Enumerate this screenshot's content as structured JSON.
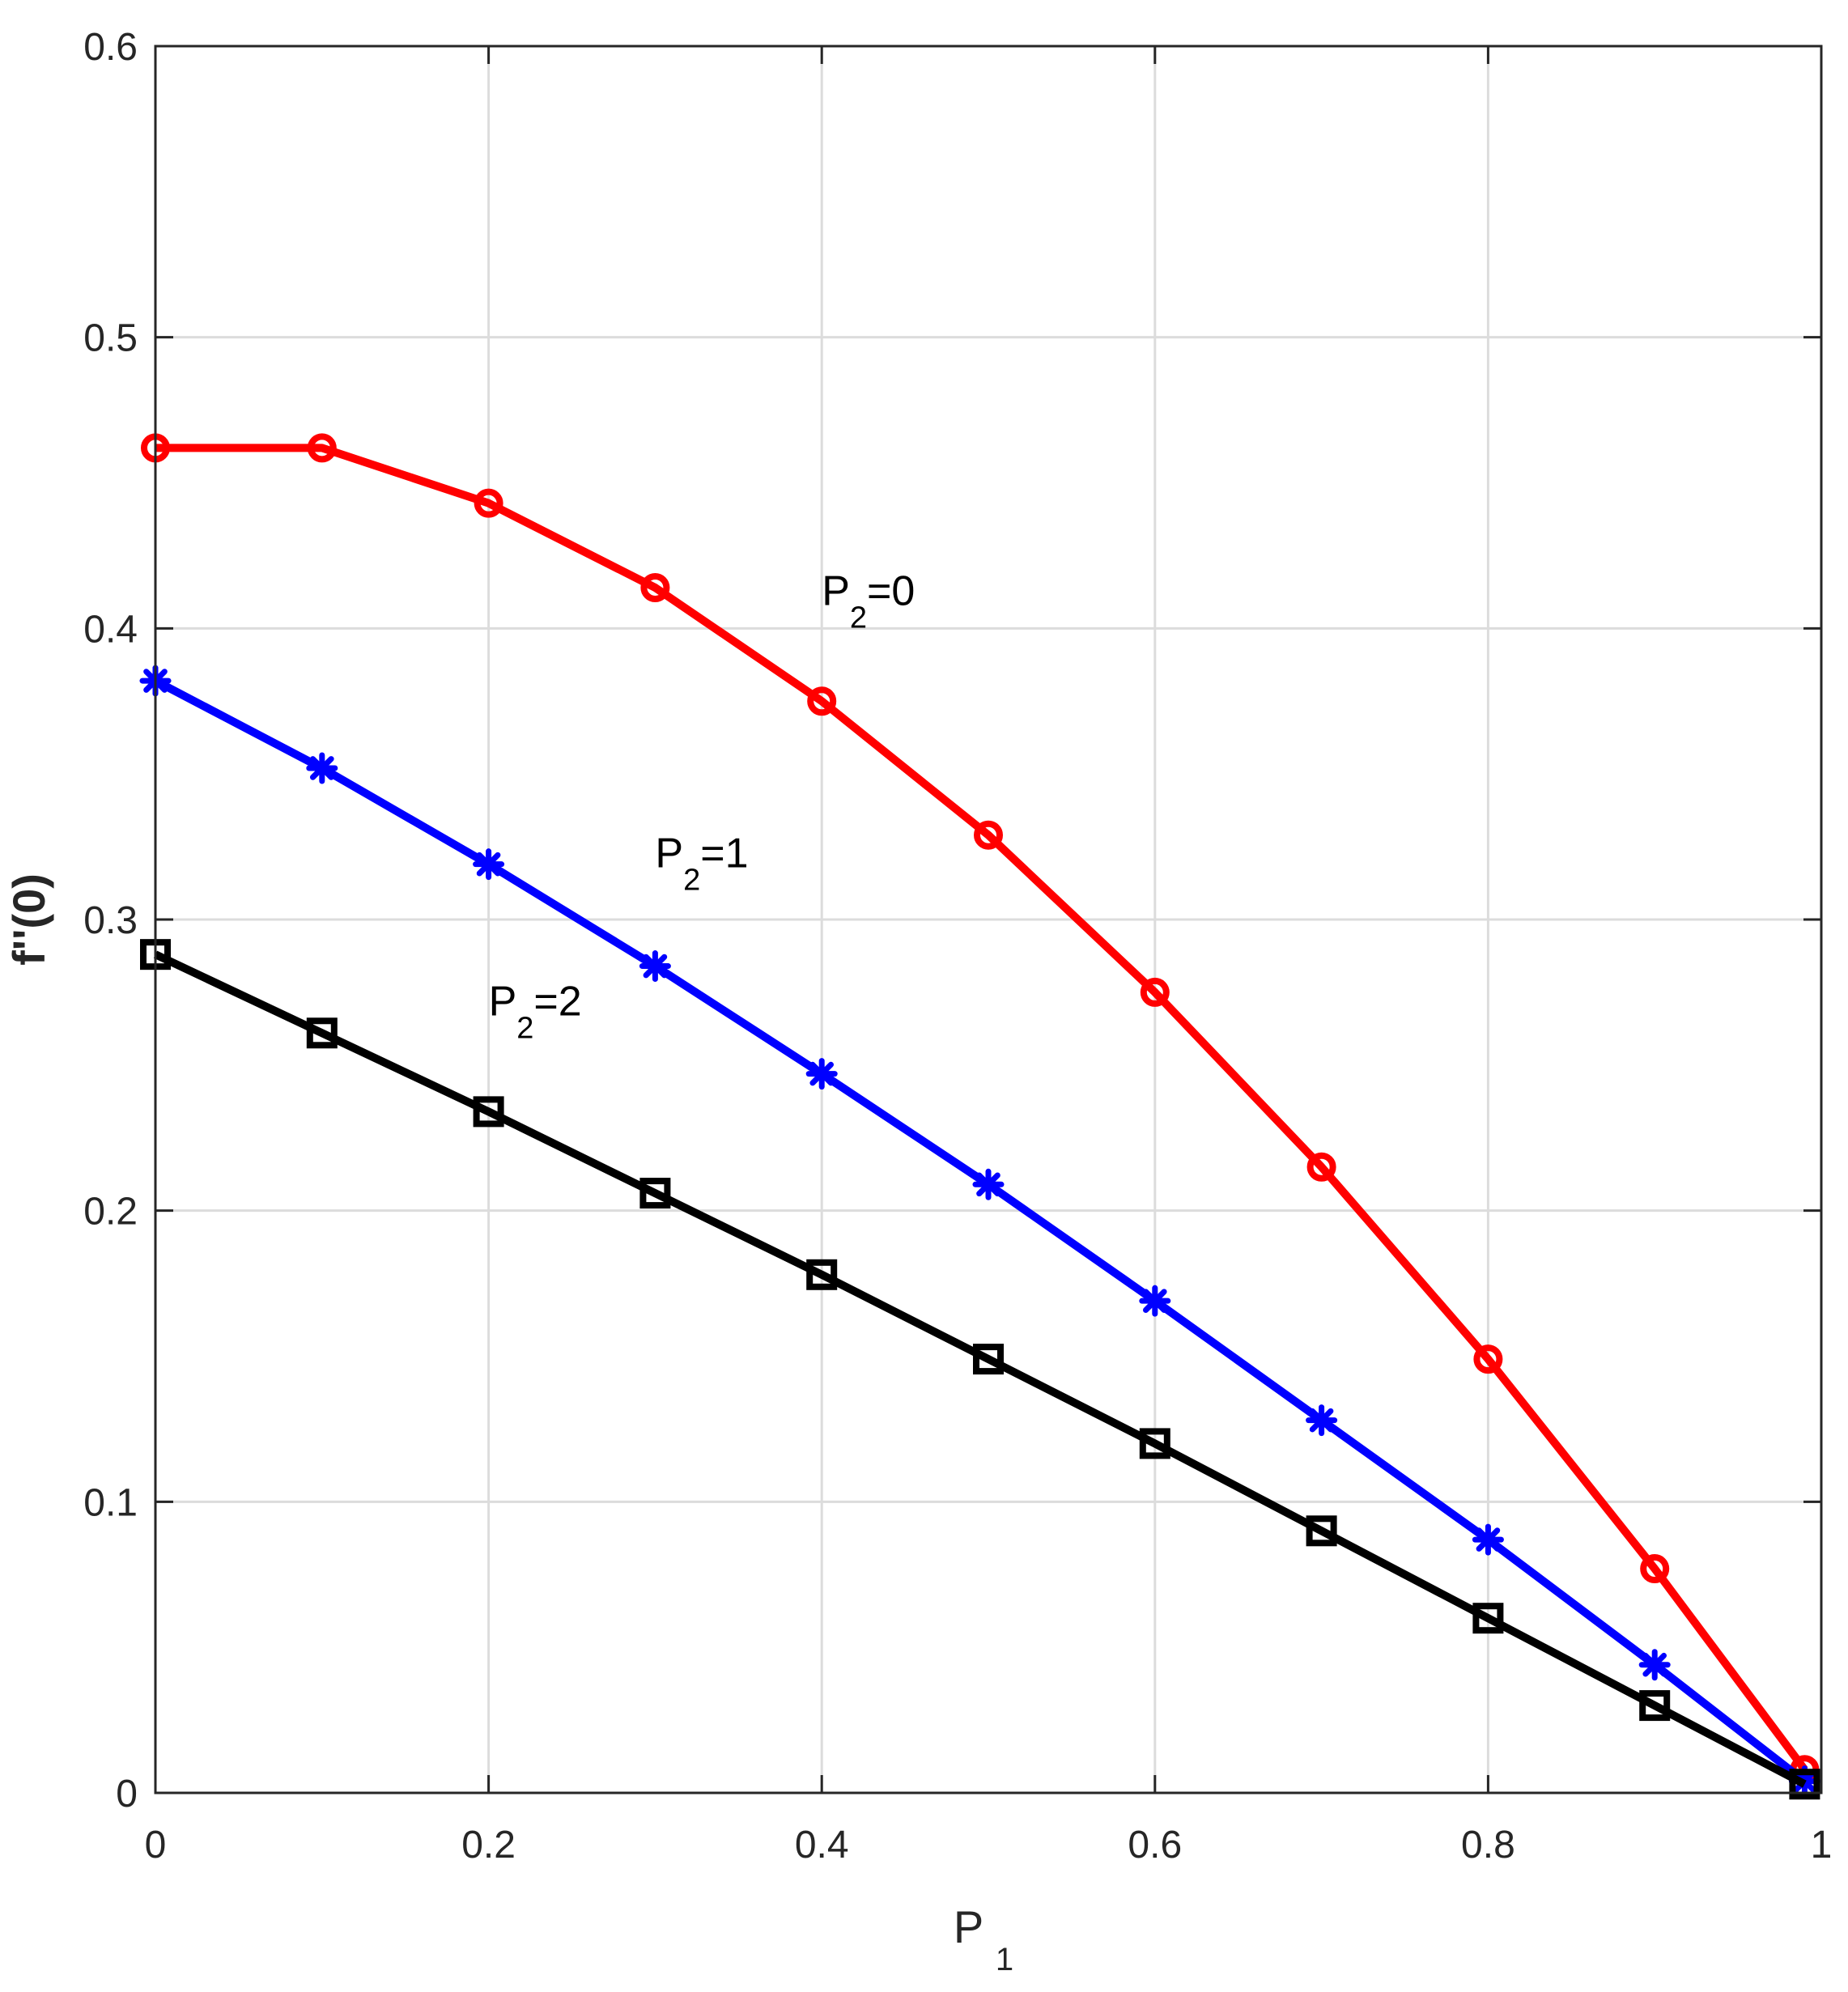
{
  "chart_data": {
    "type": "line",
    "title": "",
    "xlabel": {
      "main": "P",
      "sub": "1"
    },
    "ylabel": "f''(0)",
    "xlim": [
      0,
      1
    ],
    "ylim": [
      0,
      0.6
    ],
    "x_ticks": [
      "0",
      "0.2",
      "0.4",
      "0.6",
      "0.8",
      "1"
    ],
    "y_ticks": [
      "0",
      "0.1",
      "0.2",
      "0.3",
      "0.4",
      "0.5",
      "0.6"
    ],
    "x_tick_values": [
      0,
      0.2,
      0.4,
      0.6,
      0.8,
      1
    ],
    "y_tick_values": [
      0,
      0.1,
      0.2,
      0.3,
      0.4,
      0.5,
      0.6
    ],
    "grid": true,
    "x": [
      0,
      0.1,
      0.2,
      0.3,
      0.4,
      0.5,
      0.6,
      0.7,
      0.8,
      0.9,
      0.99
    ],
    "series": [
      {
        "color": "#ff0000",
        "marker": "circle",
        "values": [
          0.462,
          0.462,
          0.443,
          0.414,
          0.375,
          0.329,
          0.275,
          0.215,
          0.149,
          0.077,
          0.008
        ]
      },
      {
        "color": "#0000ff",
        "marker": "asterisk",
        "values": [
          0.382,
          0.352,
          0.319,
          0.284,
          0.247,
          0.209,
          0.169,
          0.128,
          0.087,
          0.044,
          0.004
        ]
      },
      {
        "color": "#000000",
        "marker": "square",
        "values": [
          0.288,
          0.261,
          0.234,
          0.206,
          0.178,
          0.149,
          0.12,
          0.09,
          0.06,
          0.03,
          0.003
        ]
      }
    ],
    "annotations": [
      {
        "main": "P",
        "sub": "2",
        "rest": "=0",
        "x": 0.4,
        "y": 0.408
      },
      {
        "main": "P",
        "sub": "2",
        "rest": "=1",
        "x": 0.3,
        "y": 0.318
      },
      {
        "main": "P",
        "sub": "2",
        "rest": "=2",
        "x": 0.2,
        "y": 0.267
      }
    ]
  }
}
